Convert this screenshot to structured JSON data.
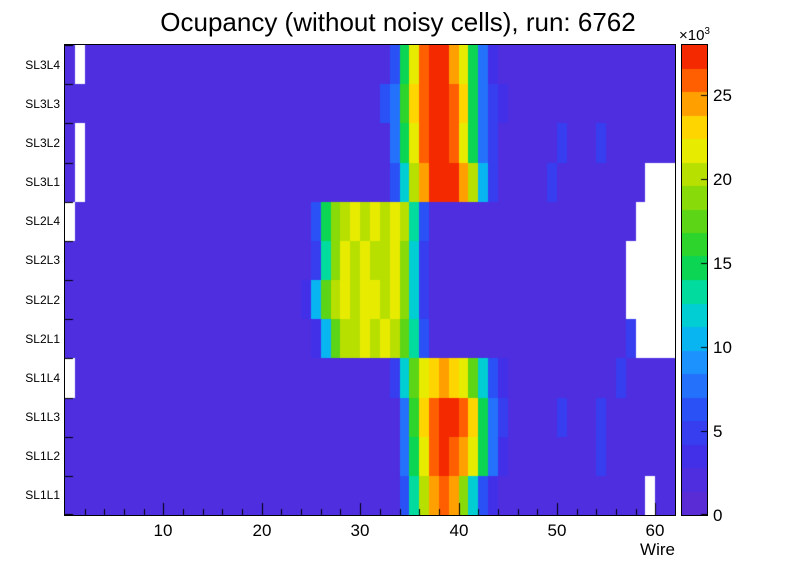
{
  "chart_data": {
    "type": "heatmap",
    "title": "Ocupancy (without noisy cells), run: 6762",
    "xlabel": "Wire",
    "x_min": 0,
    "x_max": 62,
    "n_wires": 62,
    "x_ticks": [
      10,
      20,
      30,
      40,
      50,
      60
    ],
    "rows_top_to_bottom": [
      "SL3L4",
      "SL3L3",
      "SL3L2",
      "SL3L1",
      "SL2L4",
      "SL2L3",
      "SL2L2",
      "SL2L1",
      "SL1L4",
      "SL1L3",
      "SL1L2",
      "SL1L1"
    ],
    "z_unit_note": "all cell values and z ticks are in units of 10^3 counts",
    "z_scale_base": "×10",
    "z_scale_exp": "3",
    "z_ticks": [
      0,
      5,
      10,
      15,
      20,
      25
    ],
    "z_max": 28,
    "n_contour_levels": 20,
    "background_value": 2.4,
    "legend_position": "right",
    "grid_lines": false,
    "palette_stops": [
      [
        0.0,
        "#5F2BD0"
      ],
      [
        0.14,
        "#3F31EC"
      ],
      [
        0.23,
        "#2953F7"
      ],
      [
        0.32,
        "#1E8FFF"
      ],
      [
        0.4,
        "#00C6EA"
      ],
      [
        0.47,
        "#00DCA6"
      ],
      [
        0.54,
        "#0ED33B"
      ],
      [
        0.63,
        "#5FD513"
      ],
      [
        0.72,
        "#B2DF00"
      ],
      [
        0.8,
        "#FFF000"
      ],
      [
        0.87,
        "#FFA500"
      ],
      [
        0.935,
        "#FF5200"
      ],
      [
        1.0,
        "#ED0F00"
      ]
    ],
    "cells_note": "per-row sparse spec: every wire 1..62 has background_value unless listed in overrides (value x10^3) or in removed (white, noisy cell taken out)",
    "cells": {
      "SL3L4": {
        "overrides": {
          "34": 6,
          "35": 14,
          "36": 22,
          "37": 26,
          "38": 27.5,
          "39": 27,
          "40": 25,
          "41": 21,
          "42": 14,
          "43": 7,
          "44": 4
        },
        "removed": [
          2
        ]
      },
      "SL3L3": {
        "overrides": {
          "33": 6,
          "34": 8,
          "35": 16,
          "36": 23,
          "37": 26.5,
          "38": 27.5,
          "39": 27.5,
          "40": 26,
          "41": 23,
          "42": 15,
          "43": 8,
          "44": 5,
          "45": 3.5
        },
        "removed": []
      },
      "SL3L2": {
        "overrides": {
          "34": 7,
          "35": 14,
          "36": 22,
          "37": 26,
          "38": 27.5,
          "39": 27.5,
          "40": 26,
          "41": 22,
          "42": 14,
          "43": 7,
          "44": 4.5,
          "51": 5.5,
          "55": 5
        },
        "removed": [
          2
        ]
      },
      "SL3L1": {
        "overrides": {
          "34": 6,
          "35": 12,
          "36": 20,
          "37": 25,
          "38": 27.5,
          "39": 27.5,
          "40": 27,
          "41": 25,
          "42": 20,
          "43": 10,
          "44": 5,
          "50": 5
        },
        "removed": [
          2,
          60,
          61,
          62
        ]
      },
      "SL2L4": {
        "overrides": {
          "26": 6,
          "27": 14,
          "28": 19,
          "29": 20,
          "30": 21,
          "31": 20,
          "32": 21,
          "33": 20,
          "34": 21,
          "35": 20,
          "36": 13,
          "37": 6
        },
        "removed": [
          1,
          59,
          60,
          61,
          62
        ]
      },
      "SL2L3": {
        "overrides": {
          "26": 5,
          "27": 13,
          "28": 19,
          "29": 21,
          "30": 20,
          "31": 21,
          "32": 20,
          "33": 20,
          "34": 21,
          "35": 19,
          "36": 12,
          "37": 5
        },
        "removed": [
          58,
          59,
          60,
          61,
          62
        ]
      },
      "SL2L2": {
        "overrides": {
          "25": 4,
          "26": 11,
          "27": 18,
          "28": 20,
          "29": 21,
          "30": 20,
          "31": 21,
          "32": 21,
          "33": 20,
          "34": 21,
          "35": 19,
          "36": 12,
          "37": 5
        },
        "removed": [
          58,
          59,
          60,
          61,
          62
        ]
      },
      "SL2L1": {
        "overrides": {
          "26": 4,
          "27": 11,
          "28": 18,
          "29": 20,
          "30": 20,
          "31": 21,
          "32": 20,
          "33": 21,
          "34": 20,
          "35": 18,
          "36": 13,
          "37": 6,
          "58": 5
        },
        "removed": [
          59,
          60,
          61,
          62
        ]
      },
      "SL1L4": {
        "overrides": {
          "34": 5,
          "35": 12,
          "36": 18,
          "37": 21,
          "38": 23,
          "39": 24,
          "40": 23,
          "41": 21,
          "42": 18,
          "43": 12,
          "44": 6,
          "45": 3.5,
          "57": 5
        },
        "removed": [
          1
        ]
      },
      "SL1L3": {
        "overrides": {
          "35": 8,
          "36": 16,
          "37": 23,
          "38": 26,
          "39": 27.5,
          "40": 27,
          "41": 26,
          "42": 23,
          "43": 15,
          "44": 8,
          "45": 4.5,
          "51": 5,
          "55": 5
        },
        "removed": []
      },
      "SL1L2": {
        "overrides": {
          "35": 7,
          "36": 15,
          "37": 22,
          "38": 26,
          "39": 27.5,
          "40": 26,
          "41": 25,
          "42": 22,
          "43": 14,
          "44": 7,
          "45": 4,
          "55": 5.5
        },
        "removed": []
      },
      "SL1L1": {
        "overrides": {
          "35": 6,
          "36": 13,
          "37": 20,
          "38": 25,
          "39": 26,
          "40": 24,
          "41": 19,
          "42": 12,
          "43": 6,
          "44": 3
        },
        "removed": [
          60
        ]
      }
    }
  }
}
